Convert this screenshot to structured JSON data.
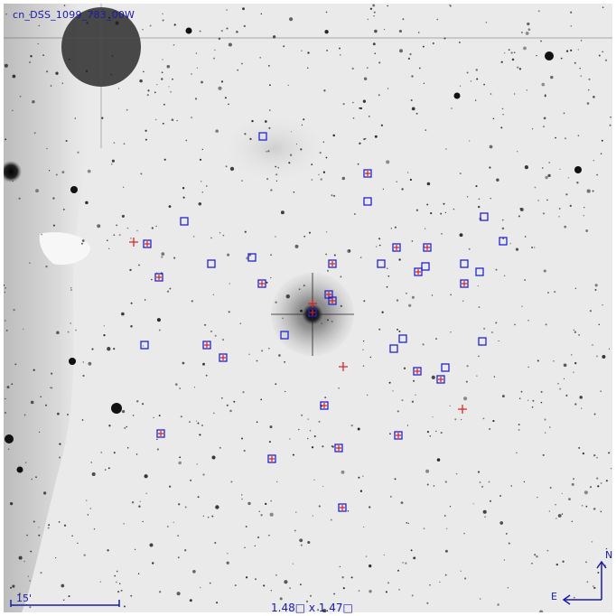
{
  "image": {
    "id_label": "cn_DSS_1099_783_00W",
    "scale_label": "15'",
    "fov_label": "1.48□ x 1.47□",
    "north_label": "N",
    "east_label": "E"
  },
  "colors": {
    "marker_square": "#2424d0",
    "marker_cross": "#e01c1c",
    "annotation": "#1a1aa8",
    "sky_background": "#e9e9e9"
  },
  "icons": {
    "compass": "north-east-compass-icon",
    "scale_bar": "scale-bar-icon"
  }
}
